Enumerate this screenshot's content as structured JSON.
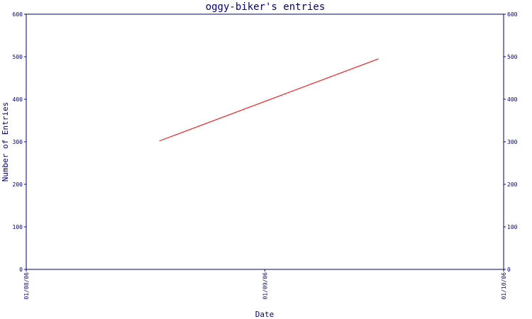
{
  "chart_data": {
    "type": "line",
    "title": "oggy-biker's entries",
    "xlabel": "Date",
    "ylabel": "Number of Entries",
    "x_ticks": [
      "01/08/06",
      "01/09/06",
      "01/10/06"
    ],
    "y_ticks": [
      0,
      100,
      200,
      300,
      400,
      500,
      600
    ],
    "ylim": [
      0,
      600
    ],
    "xlim": [
      "2006-08-01",
      "2006-10-01"
    ],
    "grid": false,
    "legend": "none",
    "series": [
      {
        "color": "#ff0000",
        "x": [
          "2006-08-18",
          "2006-09-15"
        ],
        "y": [
          302,
          495
        ]
      }
    ]
  }
}
